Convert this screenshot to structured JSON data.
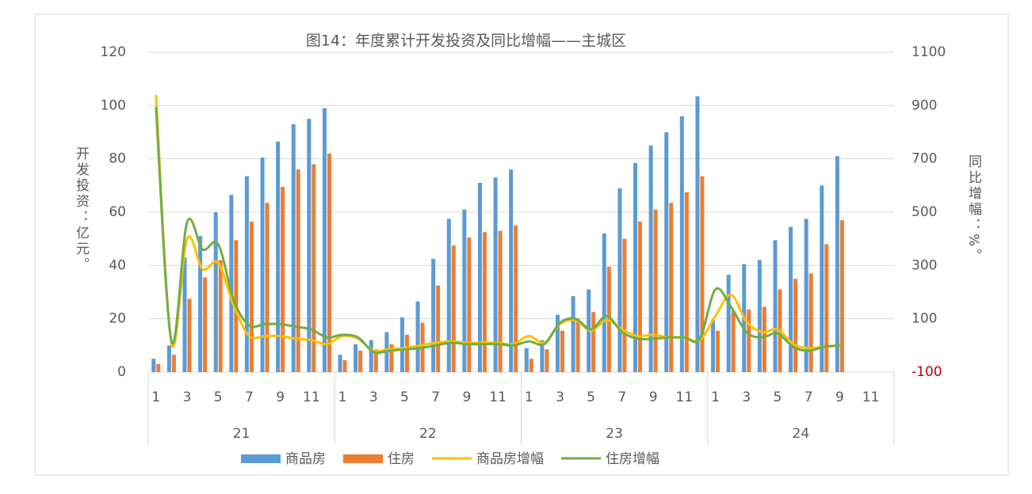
{
  "chart_data": {
    "type": "bar-line",
    "title": "图14：年度累计开发投资及同比增幅——主城区",
    "y_label": "开发投资：亿元。",
    "y2_label": "同比增幅：%。",
    "categories": [
      "1",
      null,
      "3",
      null,
      "5",
      null,
      "7",
      null,
      "9",
      null,
      "11",
      null,
      "1",
      null,
      "3",
      null,
      "5",
      null,
      "7",
      null,
      "9",
      null,
      "11",
      null,
      "1",
      null,
      "3",
      null,
      "5",
      null,
      "7",
      null,
      "9",
      null,
      "11",
      null,
      "1",
      null,
      "3",
      null,
      "5",
      null,
      "7",
      null,
      "9",
      null,
      "11",
      null
    ],
    "category_groups": [
      "21",
      "22",
      "23",
      "24"
    ],
    "ylim": [
      0,
      120
    ],
    "yticks": [
      0,
      20,
      40,
      60,
      80,
      100,
      120
    ],
    "y2lim": [
      -100,
      1100
    ],
    "y2ticks": [
      -100,
      100,
      300,
      500,
      700,
      900,
      1100
    ],
    "y2_negative_tick_color": "#c00000",
    "grid": true,
    "legend": "bottom",
    "series": [
      {
        "name": "商品房",
        "kind": "bar",
        "color": "#5b9bd5",
        "values": [
          5,
          10,
          43,
          51,
          60,
          66.5,
          73.5,
          80.5,
          86.5,
          93,
          95,
          99,
          6.5,
          10.5,
          12,
          15,
          20.5,
          26.5,
          42.5,
          57.5,
          61,
          71,
          73,
          76,
          9,
          12,
          21.5,
          28.5,
          31,
          52,
          69,
          78.5,
          85,
          90,
          96,
          103.5,
          19.5,
          36.5,
          40.5,
          42,
          49.5,
          54.5,
          57.5,
          70,
          81,
          null,
          null,
          null
        ]
      },
      {
        "name": "住房",
        "kind": "bar",
        "color": "#ed7d31",
        "values": [
          3,
          6.5,
          27.5,
          35.5,
          42,
          49.5,
          56.5,
          63.5,
          69.5,
          76,
          78,
          82,
          4.5,
          8,
          8.5,
          10.5,
          14,
          18.5,
          32.5,
          47.5,
          50.5,
          52.5,
          53,
          55,
          5,
          8.5,
          15.5,
          20,
          22.5,
          39.5,
          50,
          56.5,
          61,
          63.5,
          67.5,
          73.5,
          15.5,
          23,
          23.5,
          24.5,
          31,
          35,
          37,
          48,
          57,
          null,
          null,
          null
        ]
      },
      {
        "name": "商品房增幅",
        "kind": "line",
        "axis": "y2",
        "color": "#ffc000",
        "values": [
          940,
          7,
          400,
          286,
          310,
          150,
          35,
          35,
          35,
          25,
          20,
          5,
          35,
          25,
          -20,
          -15,
          -10,
          0,
          10,
          15,
          10,
          10,
          10,
          5,
          35,
          10,
          80,
          95,
          55,
          95,
          60,
          35,
          40,
          30,
          30,
          20,
          110,
          190,
          90,
          50,
          60,
          5,
          -10,
          -5,
          0,
          null,
          null,
          null
        ]
      },
      {
        "name": "住房增幅",
        "kind": "line",
        "axis": "y2",
        "color": "#70ad47",
        "values": [
          895,
          15,
          462,
          360,
          380,
          170,
          75,
          80,
          80,
          70,
          60,
          30,
          40,
          30,
          -25,
          -20,
          -15,
          -10,
          0,
          10,
          5,
          5,
          5,
          0,
          15,
          5,
          85,
          100,
          60,
          110,
          50,
          25,
          25,
          30,
          30,
          25,
          210,
          145,
          50,
          30,
          45,
          -5,
          -20,
          -5,
          0,
          null,
          null,
          null
        ]
      }
    ]
  }
}
